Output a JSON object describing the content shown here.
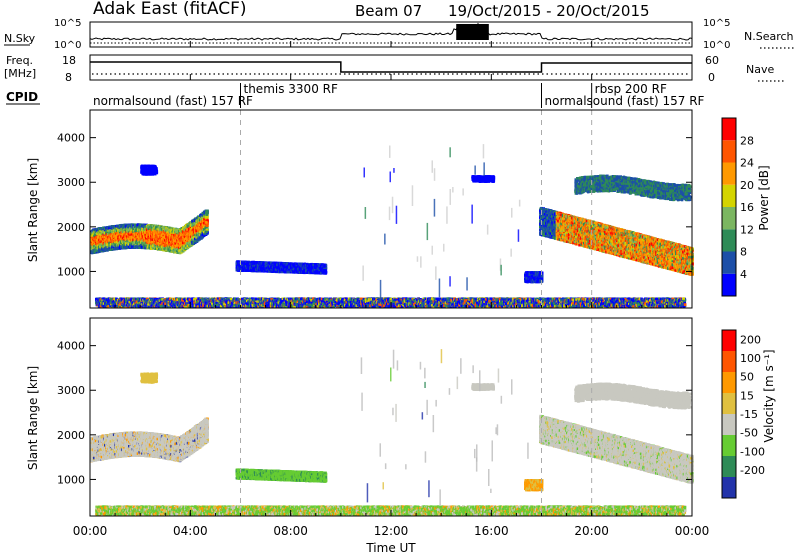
{
  "header": {
    "station": "Adak East (fitACF)",
    "beam": "Beam 07",
    "dates": "19/Oct/2015 - 20/Oct/2015"
  },
  "top_panels": {
    "nsky_label": "N.Sky",
    "nsearch_label": "N.Search",
    "freq_label_1": "Freq.",
    "freq_label_2": "[MHz]",
    "nave_label": "Nave",
    "cpid_label": "CPID",
    "log_ticks_left": [
      "10^5",
      "10^0"
    ],
    "log_ticks_right": [
      "10^5",
      "10^0"
    ],
    "freq_ticks": [
      "18",
      "8"
    ],
    "nave_ticks": [
      "60",
      "0"
    ],
    "cpid_segments": [
      {
        "label": "normalsound (fast) 157 RF",
        "start_h": 0.0
      },
      {
        "label": "themis 3300 RF",
        "start_h": 6.0
      },
      {
        "label": "normalsound (fast) 157 RF",
        "start_h": 18.0
      },
      {
        "label": "rbsp 200 RF",
        "start_h": 20.0
      }
    ]
  },
  "chart_data": [
    {
      "type": "heatmap",
      "name": "power",
      "ylabel": "Slant Range [km]",
      "yticks": [
        "4000",
        "3000",
        "2000",
        "1000"
      ],
      "ylim": [
        180,
        4620
      ],
      "colorbar_label": "Power [dB]",
      "colorbar_ticks": [
        "28",
        "24",
        "20",
        "16",
        "12",
        "8",
        "4"
      ],
      "colorbar_range": [
        0,
        32
      ],
      "colors": [
        "#0000ff",
        "#1c4fa8",
        "#2e8b57",
        "#7bb661",
        "#d4d400",
        "#ff9900",
        "#ff5500",
        "#ff0000"
      ]
    },
    {
      "type": "heatmap",
      "name": "velocity",
      "ylabel": "Slant Range [km]",
      "yticks": [
        "4000",
        "3000",
        "2000",
        "1000"
      ],
      "ylim": [
        180,
        4620
      ],
      "colorbar_label": "Velocity [m s⁻¹]",
      "colorbar_ticks": [
        "200",
        "100",
        "50",
        "15",
        "-15",
        "-50",
        "-100",
        "-200"
      ],
      "colors": [
        "#2233aa",
        "#2e8b57",
        "#66cc33",
        "#c8c8c0",
        "#e0c040",
        "#ff9900",
        "#ff5500",
        "#ff0000"
      ]
    }
  ],
  "x_axis": {
    "label": "Time UT",
    "ticks": [
      "00:00",
      "04:00",
      "08:00",
      "12:00",
      "16:00",
      "20:00",
      "00:00"
    ],
    "xlim_hours": [
      0,
      24
    ]
  }
}
